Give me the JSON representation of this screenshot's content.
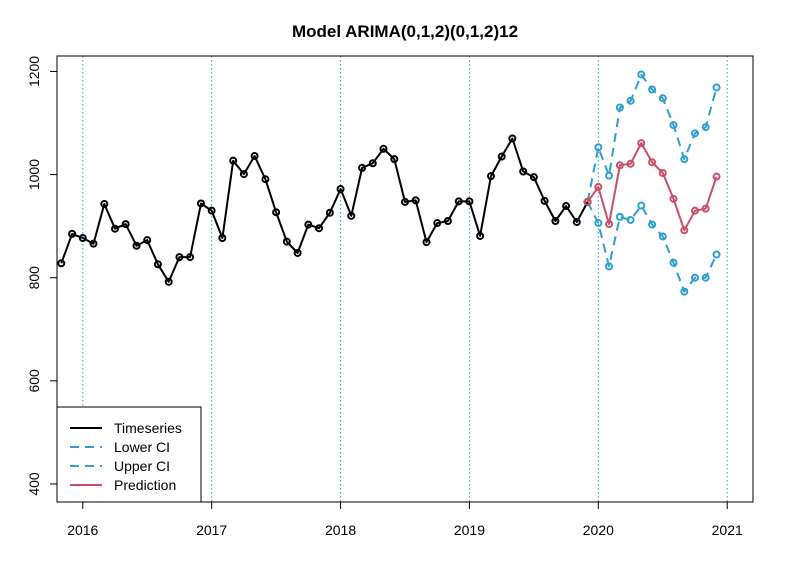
{
  "chart_data": {
    "type": "line",
    "title": "Model ARIMA(0,1,2)(0,1,2)12",
    "xlabel": "",
    "ylabel": "",
    "xlim": [
      2015.8,
      2021.2
    ],
    "ylim": [
      365,
      1230
    ],
    "x_ticks": [
      2016,
      2017,
      2018,
      2019,
      2020,
      2021
    ],
    "x_tick_labels": [
      "2016",
      "2017",
      "2018",
      "2019",
      "2020",
      "2021"
    ],
    "y_ticks": [
      400,
      600,
      800,
      1000,
      1200
    ],
    "y_tick_labels": [
      "400",
      "600",
      "800",
      "1000",
      "1200"
    ],
    "vertical_gridlines": [
      2016,
      2017,
      2018,
      2019,
      2020,
      2021
    ],
    "legend_position": "bottom-left",
    "colors": {
      "timeseries": "#000000",
      "ci": "#2E9FCE",
      "prediction": "#C7506A",
      "grid": "#2E9FCE"
    },
    "series": [
      {
        "name": "Timeseries",
        "style": "solid",
        "x": [
          2015.833,
          2015.917,
          2016.0,
          2016.083,
          2016.167,
          2016.25,
          2016.333,
          2016.417,
          2016.5,
          2016.583,
          2016.667,
          2016.75,
          2016.833,
          2016.917,
          2017.0,
          2017.083,
          2017.167,
          2017.25,
          2017.333,
          2017.417,
          2017.5,
          2017.583,
          2017.667,
          2017.75,
          2017.833,
          2017.917,
          2018.0,
          2018.083,
          2018.167,
          2018.25,
          2018.333,
          2018.417,
          2018.5,
          2018.583,
          2018.667,
          2018.75,
          2018.833,
          2018.917,
          2019.0,
          2019.083,
          2019.167,
          2019.25,
          2019.333,
          2019.417,
          2019.5,
          2019.583,
          2019.667,
          2019.75,
          2019.833,
          2019.917
        ],
        "values": [
          828,
          885,
          877,
          866,
          943,
          895,
          904,
          862,
          873,
          826,
          792,
          840,
          840,
          944,
          930,
          877,
          1027,
          1001,
          1036,
          991,
          927,
          870,
          848,
          903,
          896,
          926,
          972,
          920,
          1013,
          1022,
          1050,
          1030,
          947,
          950,
          869,
          906,
          910,
          948,
          948,
          881,
          997,
          1035,
          1070,
          1006,
          995,
          949,
          910,
          939,
          908,
          947
        ]
      },
      {
        "name": "Lower CI",
        "style": "dashed",
        "x": [
          2019.917,
          2020.0,
          2020.083,
          2020.167,
          2020.25,
          2020.333,
          2020.417,
          2020.5,
          2020.583,
          2020.667,
          2020.75,
          2020.833,
          2020.917
        ],
        "values": [
          947,
          906,
          822,
          918,
          912,
          940,
          903,
          880,
          829,
          773,
          800,
          800,
          845
        ]
      },
      {
        "name": "Upper CI",
        "style": "dashed",
        "x": [
          2019.917,
          2020.0,
          2020.083,
          2020.167,
          2020.25,
          2020.333,
          2020.417,
          2020.5,
          2020.583,
          2020.667,
          2020.75,
          2020.833,
          2020.917
        ],
        "values": [
          947,
          1053,
          998,
          1130,
          1143,
          1194,
          1165,
          1148,
          1096,
          1030,
          1080,
          1092,
          1169
        ]
      },
      {
        "name": "Prediction",
        "style": "solid",
        "x": [
          2019.917,
          2020.0,
          2020.083,
          2020.167,
          2020.25,
          2020.333,
          2020.417,
          2020.5,
          2020.583,
          2020.667,
          2020.75,
          2020.833,
          2020.917
        ],
        "values": [
          947,
          976,
          904,
          1018,
          1021,
          1061,
          1024,
          1003,
          953,
          892,
          930,
          934,
          996
        ]
      }
    ]
  }
}
